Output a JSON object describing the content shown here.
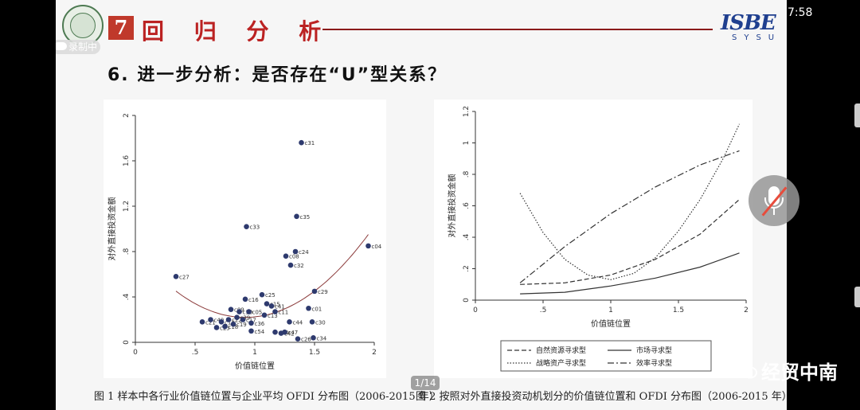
{
  "status": {
    "time": "7:58",
    "recording": "录制中"
  },
  "header": {
    "section_number": "7",
    "section_title": "回 归 分 析",
    "brand_main": "ISBE",
    "brand_sub": "SYSU"
  },
  "heading": "6. 进一步分析：是否存在“U”型关系？",
  "colors": {
    "accent_red": "#c0392b",
    "marker": "#2e3a6e",
    "fit_line": "#8b3a3a"
  },
  "page_indicator": "1/14",
  "watermark": "经贸中南",
  "mic_button": {
    "icon": "mic-off-icon"
  },
  "captions": {
    "fig1": "图 1    样本中各行业价值链位置与企业平均 OFDI 分布图（2006-2015 年）",
    "fig2": "图 2    按照对外直接投资动机划分的价值链位置和 OFDI 分布图（2006-2015 年）"
  },
  "chart_data": [
    {
      "type": "scatter",
      "xlabel": "价值链位置",
      "ylabel": "对外直接投资金额",
      "xlim": [
        0,
        2
      ],
      "ylim": [
        0,
        2
      ],
      "xticks": [
        "0",
        ".5",
        "1",
        "1.5",
        "2"
      ],
      "yticks": [
        "0",
        ".4",
        ".8",
        "1.2",
        "1.6",
        "2"
      ],
      "points": [
        {
          "x": 0.34,
          "y": 0.58,
          "label": "c27"
        },
        {
          "x": 0.56,
          "y": 0.18,
          "label": "c21"
        },
        {
          "x": 0.63,
          "y": 0.2,
          "label": "c40"
        },
        {
          "x": 0.68,
          "y": 0.13,
          "label": "c23"
        },
        {
          "x": 0.72,
          "y": 0.18,
          "label": "c14"
        },
        {
          "x": 0.75,
          "y": 0.14,
          "label": "c18"
        },
        {
          "x": 0.78,
          "y": 0.2,
          "label": "c22"
        },
        {
          "x": 0.8,
          "y": 0.29,
          "label": "c09"
        },
        {
          "x": 0.82,
          "y": 0.16,
          "label": "c19"
        },
        {
          "x": 0.85,
          "y": 0.22,
          "label": "c39"
        },
        {
          "x": 0.87,
          "y": 0.27,
          "label": "c10"
        },
        {
          "x": 0.9,
          "y": 0.2,
          "label": "c17"
        },
        {
          "x": 0.92,
          "y": 0.38,
          "label": "c16"
        },
        {
          "x": 0.93,
          "y": 1.02,
          "label": "c33"
        },
        {
          "x": 0.95,
          "y": 0.27,
          "label": "c05"
        },
        {
          "x": 0.97,
          "y": 0.17,
          "label": "c36"
        },
        {
          "x": 0.97,
          "y": 0.1,
          "label": "c54"
        },
        {
          "x": 1.06,
          "y": 0.42,
          "label": "c25"
        },
        {
          "x": 1.08,
          "y": 0.24,
          "label": "c13"
        },
        {
          "x": 1.1,
          "y": 0.34,
          "label": "c15"
        },
        {
          "x": 1.14,
          "y": 0.32,
          "label": "c41"
        },
        {
          "x": 1.17,
          "y": 0.27,
          "label": "c11"
        },
        {
          "x": 1.17,
          "y": 0.09,
          "label": "c43"
        },
        {
          "x": 1.22,
          "y": 0.08,
          "label": "c42"
        },
        {
          "x": 1.25,
          "y": 0.09,
          "label": "c47"
        },
        {
          "x": 1.26,
          "y": 0.76,
          "label": "c08"
        },
        {
          "x": 1.29,
          "y": 0.18,
          "label": "c44"
        },
        {
          "x": 1.3,
          "y": 0.68,
          "label": "c32"
        },
        {
          "x": 1.34,
          "y": 0.8,
          "label": "c24"
        },
        {
          "x": 1.35,
          "y": 1.11,
          "label": "c35"
        },
        {
          "x": 1.36,
          "y": 0.03,
          "label": "c26"
        },
        {
          "x": 1.39,
          "y": 1.76,
          "label": "c31"
        },
        {
          "x": 1.45,
          "y": 0.3,
          "label": "c01"
        },
        {
          "x": 1.48,
          "y": 0.18,
          "label": "c30"
        },
        {
          "x": 1.49,
          "y": 0.04,
          "label": "c34"
        },
        {
          "x": 1.5,
          "y": 0.45,
          "label": "c29"
        },
        {
          "x": 1.95,
          "y": 0.85,
          "label": "c04"
        }
      ],
      "fit_line": {
        "type": "quadratic",
        "x_range": [
          0.34,
          1.95
        ],
        "vertex": [
          0.92,
          0.22
        ],
        "y_at_start": 0.39,
        "y_at_end": 0.95
      }
    },
    {
      "type": "line",
      "xlabel": "价值链位置",
      "ylabel": "对外直接投资金额",
      "xlim": [
        0,
        2
      ],
      "ylim": [
        0,
        1.2
      ],
      "xticks": [
        "0",
        ".5",
        "1",
        "1.5",
        "2"
      ],
      "yticks": [
        "0",
        ".2",
        ".4",
        ".6",
        ".8",
        "1",
        "1.2"
      ],
      "legend": "bottom",
      "series": [
        {
          "name": "自然资源寻求型",
          "style": "dashed",
          "x": [
            0.33,
            0.66,
            1,
            1.33,
            1.66,
            1.95
          ],
          "values": [
            0.1,
            0.11,
            0.16,
            0.26,
            0.42,
            0.64
          ]
        },
        {
          "name": "市场寻求型",
          "style": "solid",
          "x": [
            0.33,
            0.66,
            1,
            1.33,
            1.66,
            1.95
          ],
          "values": [
            0.04,
            0.05,
            0.09,
            0.14,
            0.21,
            0.3
          ]
        },
        {
          "name": "战略资产寻求型",
          "style": "dotted",
          "x": [
            0.33,
            0.5,
            0.66,
            0.83,
            1,
            1.17,
            1.33,
            1.5,
            1.66,
            1.83,
            1.95
          ],
          "values": [
            0.68,
            0.43,
            0.26,
            0.16,
            0.13,
            0.17,
            0.27,
            0.44,
            0.64,
            0.9,
            1.12
          ]
        },
        {
          "name": "效率寻求型",
          "style": "dashdot",
          "x": [
            0.33,
            0.66,
            1,
            1.33,
            1.66,
            1.95
          ],
          "values": [
            0.11,
            0.34,
            0.55,
            0.72,
            0.86,
            0.95
          ]
        }
      ]
    }
  ]
}
